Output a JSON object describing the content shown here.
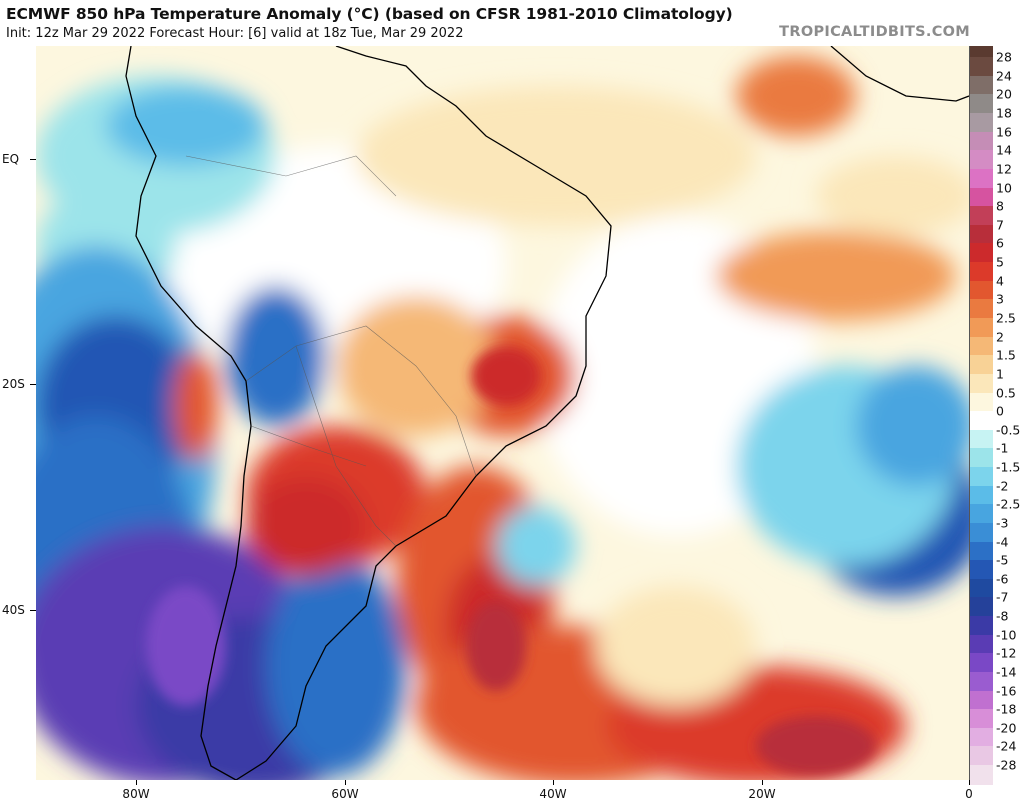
{
  "header": {
    "title": "ECMWF 850 hPa Temperature Anomaly (°C) (based on CFSR 1981-2010 Climatology)",
    "subtitle": "Init: 12z Mar 29 2022   Forecast Hour: [6]   valid at 18z Tue, Mar 29 2022",
    "brand": "TROPICALTIDBITS.COM"
  },
  "axes": {
    "lat_labels": [
      "EQ",
      "20S",
      "40S"
    ],
    "lon_labels": [
      "80W",
      "60W",
      "40W",
      "20W",
      "0"
    ]
  },
  "colorbar": {
    "labels": [
      "28",
      "24",
      "20",
      "18",
      "16",
      "14",
      "12",
      "10",
      "8",
      "7",
      "6",
      "5",
      "4",
      "3",
      "2.5",
      "2",
      "1.5",
      "1",
      "0.5",
      "0",
      "-0.5",
      "-1",
      "-1.5",
      "-2",
      "-2.5",
      "-3",
      "-4",
      "-5",
      "-6",
      "-7",
      "-8",
      "-10",
      "-12",
      "-14",
      "-16",
      "-18",
      "-20",
      "-24",
      "-28"
    ],
    "colors": [
      "#6b4a40",
      "#7f6e68",
      "#8f8a88",
      "#a89aa2",
      "#c58db6",
      "#d48cc4",
      "#dc72c4",
      "#d653a0",
      "#c23f58",
      "#b82e3a",
      "#cc2a2c",
      "#dc3a2a",
      "#e2572f",
      "#ea7a40",
      "#f19a57",
      "#f5b876",
      "#f8d296",
      "#fbe7ba",
      "#fdf7df",
      "#ffffff",
      "#c7f3f3",
      "#9ce4ea",
      "#7cd4ec",
      "#5bbce8",
      "#48a5e0",
      "#3a8ed6",
      "#2c70c6",
      "#2457b4",
      "#1f4aa0",
      "#25419a",
      "#3b3aa6",
      "#5a3cb4",
      "#7a48c6",
      "#9a5cd0",
      "#c070d0",
      "#d88ed8",
      "#e2aee2",
      "#e9c8e4",
      "#f1e1ec"
    ]
  }
}
